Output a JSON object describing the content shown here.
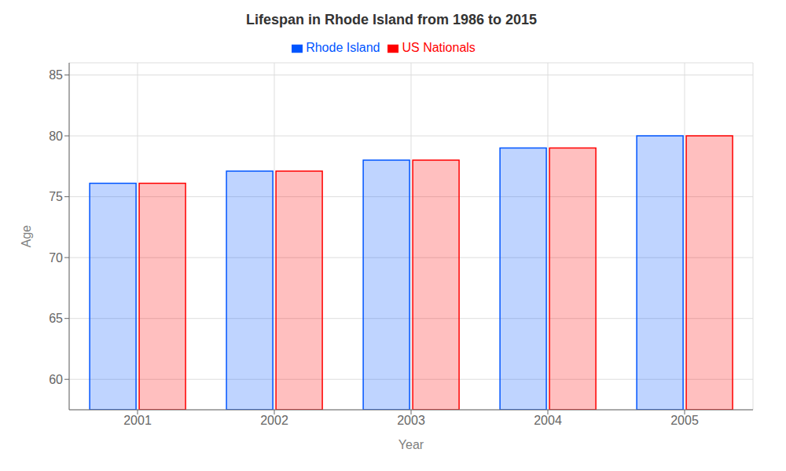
{
  "chart_data": {
    "type": "bar",
    "title": "Lifespan in Rhode Island from 1986 to 2015",
    "xlabel": "Year",
    "ylabel": "Age",
    "categories": [
      "2001",
      "2002",
      "2003",
      "2004",
      "2005"
    ],
    "series": [
      {
        "name": "Rhode Island",
        "color": "#0055ff",
        "values": [
          76.1,
          77.1,
          78.0,
          79.0,
          80.0
        ]
      },
      {
        "name": "US Nationals",
        "color": "#ff0000",
        "values": [
          76.1,
          77.1,
          78.0,
          79.0,
          80.0
        ]
      }
    ],
    "ylim": [
      57.5,
      86
    ],
    "yticks": [
      60,
      65,
      70,
      75,
      80,
      85
    ],
    "grid": true,
    "legend": "top"
  }
}
